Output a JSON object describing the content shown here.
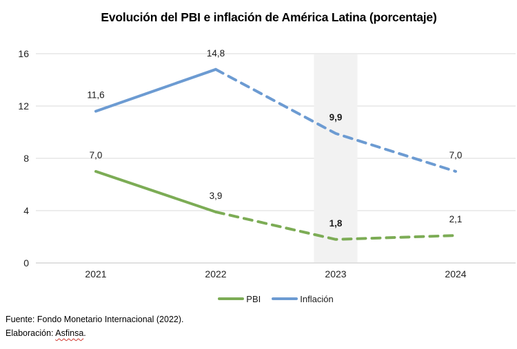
{
  "chart_data": {
    "type": "line",
    "title": "Evolución del PBI e inflación de América Latina (porcentaje)",
    "categories": [
      "2021",
      "2022",
      "2023",
      "2024"
    ],
    "series": [
      {
        "name": "PBI",
        "values": [
          7.0,
          3.9,
          1.8,
          2.1
        ],
        "labels": [
          "7,0",
          "3,9",
          "1,8",
          "2,1"
        ],
        "color": "#7CAC55"
      },
      {
        "name": "Inflación",
        "values": [
          11.6,
          14.8,
          9.9,
          7.0
        ],
        "labels": [
          "11,6",
          "14,8",
          "9,9",
          "7,0"
        ],
        "color": "#6C9BD2"
      }
    ],
    "xlabel": "",
    "ylabel": "",
    "ylim": [
      0,
      16
    ],
    "yticks": [
      0,
      4,
      8,
      12,
      16
    ],
    "grid": true,
    "legend_position": "bottom",
    "dashed_from_index": 1,
    "highlight_category_index": 2,
    "bold_label_category_index": 2,
    "colors": {
      "grid": "#D9D9D9",
      "axis": "#C2C2C2",
      "band": "#F2F2F2",
      "tick_text": "#212121",
      "data_label_text": "#1a1a1a"
    }
  },
  "footer": {
    "source": "Fuente: Fondo Monetario Internacional (2022).",
    "elaboration_prefix": "Elaboración: ",
    "elaboration_name": "Asfinsa",
    "elaboration_suffix": "."
  }
}
